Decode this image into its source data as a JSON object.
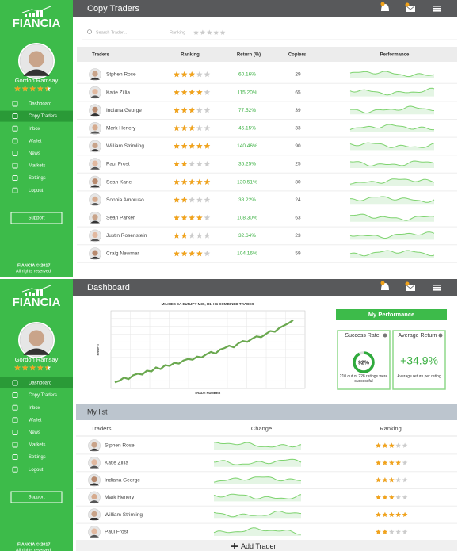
{
  "brand": "FIANCIA",
  "user": {
    "name": "Gordon Ramsay",
    "rating": 4.5
  },
  "menu": [
    "Dashboard",
    "Copy Traders",
    "Inbox",
    "Wallet",
    "News",
    "Markets",
    "Settings",
    "Logout"
  ],
  "support": "Support",
  "footer": [
    "FIANCIA © 2017",
    "All rights reserved"
  ],
  "copy_traders": {
    "title": "Copy Traders",
    "search_placeholder": "Search Trader...",
    "ranking_filter": "Ranking",
    "columns": [
      "Traders",
      "Ranking",
      "Return (%)",
      "Copiers",
      "Performance"
    ],
    "rows": [
      {
        "name": "Stphen Rose",
        "ranking": 3,
        "return": "60.16%",
        "copiers": 29
      },
      {
        "name": "Katie Zillia",
        "ranking": 4,
        "return": "115.20%",
        "copiers": 65
      },
      {
        "name": "Indiana George",
        "ranking": 3,
        "return": "77.52%",
        "copiers": 39
      },
      {
        "name": "Mark Henery",
        "ranking": 3,
        "return": "45.15%",
        "copiers": 33
      },
      {
        "name": "William Strimling",
        "ranking": 5,
        "return": "140.46%",
        "copiers": 90
      },
      {
        "name": "Paul Frost",
        "ranking": 2,
        "return": "35.25%",
        "copiers": 25
      },
      {
        "name": "Sean Kane",
        "ranking": 5,
        "return": "130.51%",
        "copiers": 80
      },
      {
        "name": "Sophia Amoruso",
        "ranking": 2,
        "return": "38.22%",
        "copiers": 24
      },
      {
        "name": "Sean Parker",
        "ranking": 4,
        "return": "108.30%",
        "copiers": 63
      },
      {
        "name": "Justin Rosenstein",
        "ranking": 2,
        "return": "32.64%",
        "copiers": 23
      },
      {
        "name": "Craig Newmar",
        "ranking": 4,
        "return": "104.16%",
        "copiers": 59
      }
    ]
  },
  "dashboard": {
    "title": "Dashboard",
    "chart": {
      "type": "line",
      "title": "MILKIES EA EURJPY M30, H1, H4 COMBINED TRADES",
      "x_label": "TRADE NUMBER",
      "y_label": "PROFIT",
      "color": "#6aa84f",
      "ylim": [
        0,
        100
      ],
      "values": [
        8,
        10,
        14,
        12,
        17,
        19,
        18,
        23,
        22,
        27,
        25,
        30,
        29,
        33,
        32,
        36,
        38,
        37,
        41,
        40,
        44,
        47,
        45,
        50,
        52,
        55,
        53,
        58,
        61,
        60,
        64,
        67,
        66,
        70,
        74,
        73,
        78,
        81,
        84,
        88
      ]
    },
    "performance": {
      "title": "My Performance",
      "success": {
        "title": "Success Rate",
        "rate": {
          "value": 92,
          "label": "92%"
        },
        "note": "210 out of 228 ratings were successful"
      },
      "average": {
        "title": "Average Return",
        "value": "+34.9%",
        "note": "Average return per rating"
      }
    },
    "my_list": {
      "title": "My list",
      "columns": [
        "Traders",
        "Change",
        "Ranking"
      ],
      "rows": [
        {
          "name": "Stphen Rose",
          "ranking": 3
        },
        {
          "name": "Katie Zillia",
          "ranking": 4
        },
        {
          "name": "Indiana George",
          "ranking": 3
        },
        {
          "name": "Mark Henery",
          "ranking": 3
        },
        {
          "name": "William Strimling",
          "ranking": 5
        },
        {
          "name": "Paul Frost",
          "ranking": 2
        }
      ]
    },
    "add_button": "Add Trader"
  }
}
